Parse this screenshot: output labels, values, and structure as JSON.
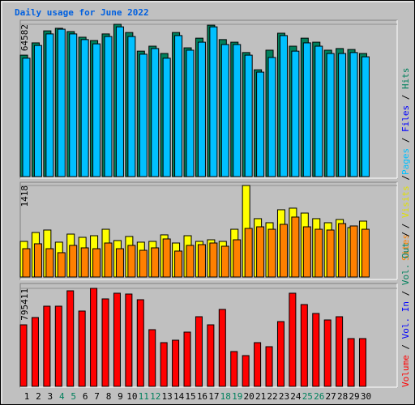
{
  "chart_data": [
    {
      "type": "bar",
      "title": "Daily usage for June 2022",
      "ylim": [
        0,
        64582
      ],
      "yticks": [
        64582
      ],
      "legend": [
        "Pages",
        "Files",
        "Hits"
      ],
      "legend_colors": [
        "#00c0ff",
        "#0000ff",
        "#00805c"
      ],
      "separator": "/",
      "series": [
        {
          "color": "#00805c",
          "values": [
            51500,
            56700,
            61800,
            62900,
            61500,
            59100,
            57700,
            60500,
            64582,
            61100,
            53200,
            55300,
            52200,
            61100,
            54600,
            58700,
            64200,
            58100,
            57000,
            52600,
            45300,
            53600,
            60800,
            55300,
            58700,
            57000,
            53600,
            54300,
            53900,
            52200
          ]
        },
        {
          "color": "#00c0ff",
          "values": [
            50200,
            55600,
            60500,
            62500,
            60500,
            58100,
            56300,
            59400,
            63500,
            59400,
            51900,
            54300,
            50200,
            59800,
            53600,
            57000,
            63500,
            56000,
            56000,
            51500,
            44300,
            50500,
            59800,
            53200,
            56700,
            55300,
            52200,
            52200,
            52600,
            50800
          ]
        }
      ]
    },
    {
      "type": "bar",
      "ylim": [
        0,
        1418
      ],
      "yticks": [
        1418
      ],
      "legend": [
        "Sites",
        "Visits"
      ],
      "legend_colors": [
        "#ff8000",
        "#e0e000"
      ],
      "series": [
        {
          "color": "#ffff00",
          "values": [
            552,
            690,
            728,
            540,
            665,
            615,
            640,
            740,
            565,
            628,
            540,
            552,
            653,
            527,
            640,
            552,
            577,
            552,
            740,
            1418,
            904,
            841,
            1042,
            1067,
            991,
            904,
            841,
            891,
            766,
            866
          ]
        },
        {
          "color": "#ff8000",
          "values": [
            439,
            515,
            439,
            377,
            490,
            452,
            439,
            527,
            439,
            490,
            414,
            452,
            590,
            402,
            490,
            502,
            527,
            477,
            577,
            753,
            778,
            740,
            816,
            929,
            778,
            740,
            728,
            828,
            791,
            740
          ]
        }
      ]
    },
    {
      "type": "bar",
      "ylim": [
        0,
        795411
      ],
      "yticks": [
        795411
      ],
      "legend": [
        "Volume",
        "Vol. In",
        "Vol. Out"
      ],
      "legend_colors": [
        "#ff0000",
        "#0000ff",
        "#00805c"
      ],
      "categories": [
        "1",
        "2",
        "3",
        "4",
        "5",
        "6",
        "7",
        "8",
        "9",
        "10",
        "11",
        "12",
        "13",
        "14",
        "15",
        "16",
        "17",
        "18",
        "19",
        "20",
        "21",
        "22",
        "23",
        "24",
        "25",
        "26",
        "27",
        "28",
        "29",
        "30"
      ],
      "label_colors": [
        "#000000",
        "#000000",
        "#000000",
        "#00805c",
        "#00805c",
        "#000000",
        "#000000",
        "#000000",
        "#000000",
        "#000000",
        "#00805c",
        "#00805c",
        "#000000",
        "#000000",
        "#000000",
        "#000000",
        "#000000",
        "#00805c",
        "#00805c",
        "#000000",
        "#000000",
        "#000000",
        "#000000",
        "#000000",
        "#00805c",
        "#00805c",
        "#000000",
        "#000000",
        "#000000",
        "#000000"
      ],
      "series": [
        {
          "color": "#ff0000",
          "values": [
            499600,
            558800,
            650800,
            650800,
            775700,
            611400,
            795411,
            710000,
            756000,
            749400,
            703400,
            460200,
            355000,
            374700,
            440500,
            565400,
            499600,
            624500,
            282700,
            249800,
            355000,
            322100,
            525900,
            756000,
            664000,
            591700,
            539100,
            565400,
            387900,
            387900
          ]
        }
      ]
    }
  ]
}
